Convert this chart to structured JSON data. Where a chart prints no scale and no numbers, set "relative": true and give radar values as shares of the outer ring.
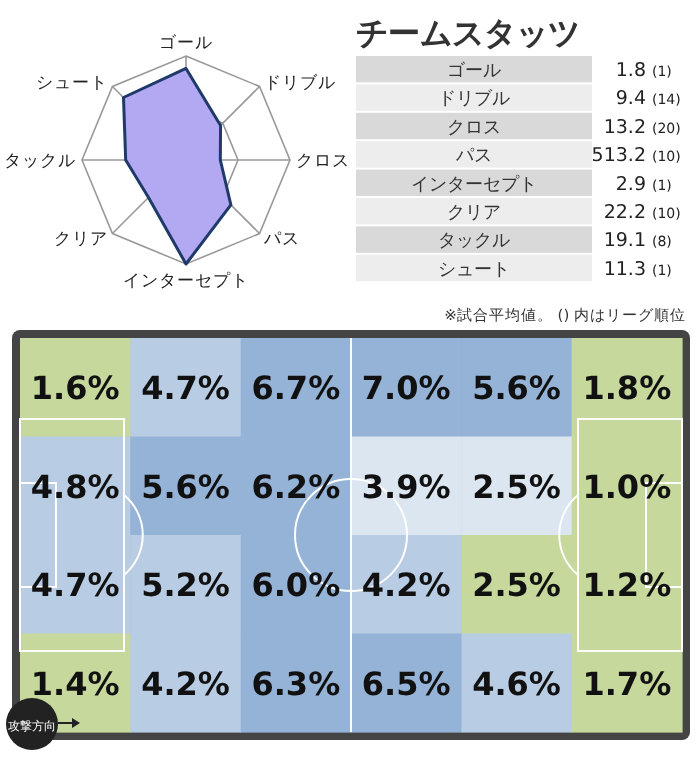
{
  "chart_data": [
    {
      "type": "radar",
      "relative": true,
      "grid": true,
      "categories": [
        "ゴール",
        "ドリブル",
        "クロス",
        "パス",
        "インターセプト",
        "クリア",
        "タックル",
        "シュート"
      ],
      "series": [
        {
          "color": "#1f3a68",
          "values": [
            0.88,
            0.47,
            0.33,
            0.61,
            1.0,
            0.51,
            0.58,
            0.85
          ]
        }
      ]
    },
    {
      "type": "other",
      "title": "チームスタッツ",
      "data_labels": true,
      "categories": [
        "ゴール",
        "ドリブル",
        "クロス",
        "パス",
        "インターセプト",
        "クリア",
        "タックル",
        "シュート"
      ],
      "series": [
        {
          "values": [
            1.8,
            9.4,
            13.2,
            513.2,
            2.9,
            22.2,
            19.1,
            11.3
          ]
        },
        {
          "values": [
            1,
            14,
            20,
            10,
            1,
            10,
            8,
            1
          ],
          "value_labels": [
            "(1)",
            "(14)",
            "(20)",
            "(10)",
            "(1)",
            "(10)",
            "(8)",
            "(1)"
          ]
        }
      ],
      "annotations": [
        "※試合平均値。 () 内はリーグ順位"
      ]
    },
    {
      "type": "heatmap",
      "categories": [
        null,
        null,
        null,
        null,
        null,
        null
      ],
      "y_categories": [
        null,
        null,
        null,
        null
      ],
      "cells": [
        [
          1.6,
          4.7,
          6.7,
          7.0,
          5.6,
          1.8
        ],
        [
          4.8,
          5.6,
          6.2,
          3.9,
          2.5,
          1.0
        ],
        [
          4.7,
          5.2,
          6.0,
          4.2,
          2.5,
          1.2
        ],
        [
          1.4,
          4.2,
          6.3,
          6.5,
          4.6,
          1.7
        ]
      ],
      "cell_labels": [
        [
          "1.6%",
          "4.7%",
          "6.7%",
          "7.0%",
          "5.6%",
          "1.8%"
        ],
        [
          "4.8%",
          "5.6%",
          "6.2%",
          "3.9%",
          "2.5%",
          "1.0%"
        ],
        [
          "4.7%",
          "5.2%",
          "6.0%",
          "4.2%",
          "2.5%",
          "1.2%"
        ],
        [
          "1.4%",
          "4.2%",
          "6.3%",
          "6.5%",
          "4.6%",
          "1.7%"
        ]
      ],
      "colors": [
        [
          "#c6d89c",
          "#b8cce4",
          "#95b3d7",
          "#95b3d7",
          "#95b3d7",
          "#c6d89c"
        ],
        [
          "#b8cce4",
          "#95b3d7",
          "#95b3d7",
          "#dce6f1",
          "#dce6f1",
          "#c6d89c"
        ],
        [
          "#b8cce4",
          "#b8cce4",
          "#95b3d7",
          "#b8cce4",
          "#c6d89c",
          "#c6d89c"
        ],
        [
          "#c6d89c",
          "#b8cce4",
          "#95b3d7",
          "#95b3d7",
          "#b8cce4",
          "#c6d89c"
        ]
      ],
      "annotations": [
        "攻撃方向"
      ]
    }
  ]
}
